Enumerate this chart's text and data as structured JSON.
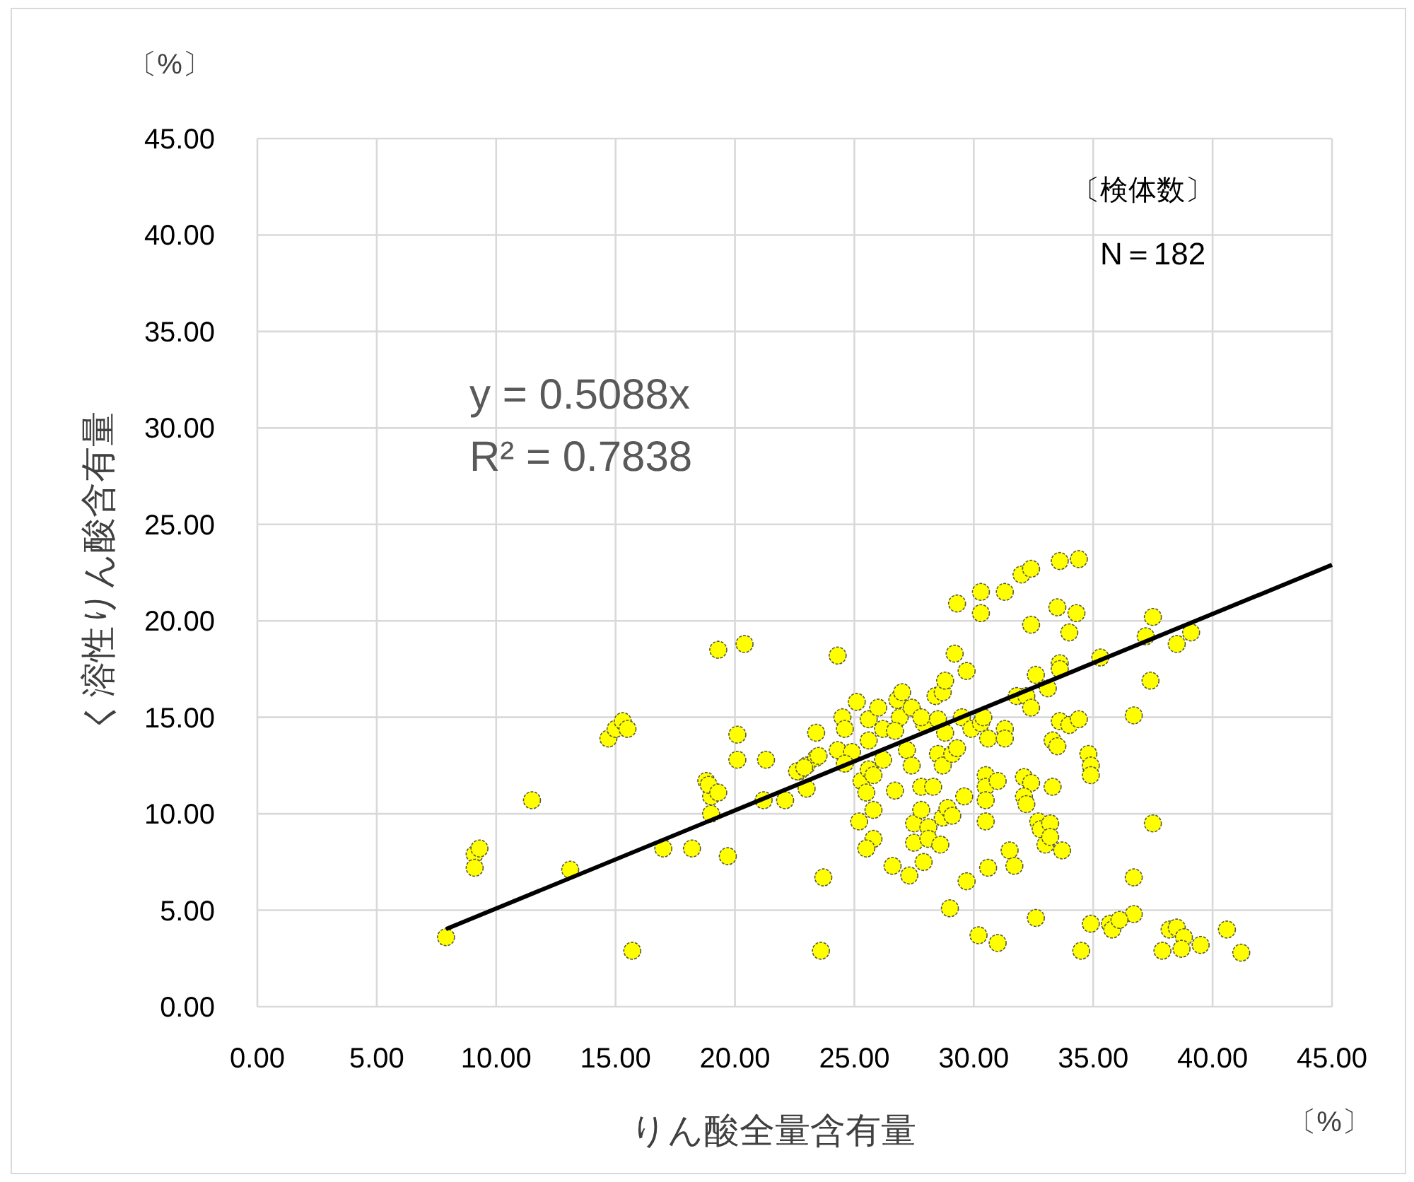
{
  "chart_data": {
    "type": "scatter",
    "xlabel": "りん酸全量含有量",
    "ylabel": "く溶性りん酸含有量",
    "annotations": [
      "〔%〕",
      "〔%〕",
      "y = 0.5088x",
      "R² = 0.7838",
      "〔検体数〕",
      "N＝182"
    ],
    "xlim": [
      0,
      45
    ],
    "ylim": [
      0,
      45
    ],
    "xticks": [
      {
        "value": 0,
        "label": "0.00"
      },
      {
        "value": 5,
        "label": "5.00"
      },
      {
        "value": 10,
        "label": "10.00"
      },
      {
        "value": 15,
        "label": "15.00"
      },
      {
        "value": 20,
        "label": "20.00"
      },
      {
        "value": 25,
        "label": "25.00"
      },
      {
        "value": 30,
        "label": "30.00"
      },
      {
        "value": 35,
        "label": "35.00"
      },
      {
        "value": 40,
        "label": "40.00"
      },
      {
        "value": 45,
        "label": "45.00"
      }
    ],
    "yticks": [
      {
        "value": 0,
        "label": "0.00"
      },
      {
        "value": 5,
        "label": "5.00"
      },
      {
        "value": 10,
        "label": "10.00"
      },
      {
        "value": 15,
        "label": "15.00"
      },
      {
        "value": 20,
        "label": "20.00"
      },
      {
        "value": 25,
        "label": "25.00"
      },
      {
        "value": 30,
        "label": "30.00"
      },
      {
        "value": 35,
        "label": "35.00"
      },
      {
        "value": 40,
        "label": "40.00"
      },
      {
        "value": 45,
        "label": "45.00"
      }
    ],
    "grid": true,
    "marker": "circle",
    "series": [
      {
        "color": "#ffff00",
        "x": [
          7.9,
          9.1,
          9.3,
          9.1,
          11.5,
          13.1,
          14.7,
          15.0,
          15.3,
          15.5,
          15.7,
          17.0,
          18.2,
          18.8,
          19.0,
          19.3,
          19.7,
          20.4,
          20.1,
          20.1,
          21.2,
          21.3,
          22.1,
          22.7,
          23.0,
          23.4,
          23.4,
          23.7,
          23.6,
          22.6,
          22.9,
          23.0,
          18.9,
          19.3,
          19.0,
          24.3,
          23.5,
          24.5,
          24.6,
          24.3,
          24.9,
          24.6,
          25.1,
          25.3,
          25.5,
          25.6,
          25.8,
          25.2,
          25.8,
          25.8,
          25.5,
          25.6,
          25.6,
          26.0,
          26.2,
          26.2,
          26.7,
          26.6,
          26.8,
          27.0,
          26.9,
          26.7,
          27.2,
          27.4,
          27.4,
          27.3,
          27.5,
          27.5,
          27.8,
          27.8,
          27.9,
          27.8,
          27.9,
          28.1,
          28.1,
          28.3,
          28.4,
          28.7,
          28.8,
          28.5,
          28.5,
          28.7,
          28.6,
          28.7,
          28.9,
          29.1,
          28.8,
          29.1,
          29.3,
          29.2,
          29.3,
          29.0,
          29.6,
          29.7,
          29.5,
          29.9,
          29.7,
          30.2,
          30.3,
          30.3,
          30.3,
          30.4,
          30.5,
          30.5,
          30.5,
          30.5,
          30.6,
          30.6,
          31.0,
          31.0,
          31.3,
          31.3,
          31.3,
          31.5,
          31.7,
          31.8,
          32.0,
          32.4,
          32.1,
          32.4,
          32.1,
          32.2,
          32.2,
          32.4,
          32.6,
          32.4,
          32.6,
          32.7,
          32.8,
          33.0,
          33.2,
          33.2,
          33.7,
          33.3,
          33.3,
          33.5,
          33.5,
          33.6,
          33.6,
          33.1,
          33.6,
          33.6,
          34.0,
          34.0,
          34.3,
          34.4,
          34.4,
          34.5,
          35.3,
          37.5,
          37.2,
          38.5,
          39.1,
          37.4,
          36.7,
          34.8,
          34.9,
          34.9,
          37.5,
          36.7,
          36.7,
          34.9,
          35.7,
          35.8,
          36.1,
          38.2,
          38.5,
          38.8,
          37.9,
          38.7,
          39.5,
          40.6,
          41.2
        ],
        "values": [
          3.6,
          7.9,
          8.2,
          7.2,
          10.7,
          7.1,
          13.9,
          14.4,
          14.8,
          14.4,
          2.9,
          8.2,
          8.2,
          11.7,
          10.9,
          18.5,
          7.8,
          18.8,
          14.1,
          12.8,
          10.7,
          12.8,
          10.7,
          12.2,
          12.5,
          14.2,
          12.9,
          6.7,
          2.9,
          12.2,
          12.4,
          11.3,
          11.5,
          11.1,
          10.0,
          18.2,
          13.0,
          15.0,
          14.4,
          13.3,
          13.2,
          12.6,
          15.8,
          11.7,
          11.1,
          12.3,
          12.0,
          9.6,
          10.2,
          8.7,
          8.2,
          13.8,
          14.9,
          15.5,
          14.4,
          12.8,
          11.2,
          7.3,
          15.9,
          16.3,
          15.0,
          14.3,
          13.3,
          15.5,
          12.5,
          6.8,
          9.5,
          8.5,
          11.4,
          10.2,
          14.7,
          15.0,
          7.5,
          9.3,
          8.7,
          11.4,
          16.1,
          16.3,
          16.9,
          14.9,
          13.1,
          12.5,
          8.4,
          9.8,
          10.3,
          9.9,
          14.2,
          13.1,
          13.4,
          18.3,
          20.9,
          5.1,
          10.9,
          17.4,
          15.0,
          14.4,
          6.5,
          3.7,
          20.4,
          21.5,
          14.7,
          15.0,
          12.0,
          11.4,
          10.7,
          9.6,
          7.2,
          13.9,
          11.7,
          3.3,
          21.5,
          14.4,
          13.9,
          8.1,
          7.3,
          16.1,
          22.4,
          22.7,
          11.9,
          11.6,
          10.9,
          10.5,
          16.1,
          15.5,
          17.2,
          19.8,
          4.6,
          9.6,
          9.2,
          8.4,
          9.5,
          8.8,
          8.1,
          11.4,
          13.8,
          13.5,
          20.7,
          23.1,
          14.8,
          16.5,
          17.8,
          17.5,
          14.6,
          19.4,
          20.4,
          23.2,
          14.9,
          2.9,
          18.1,
          20.2,
          19.2,
          18.8,
          19.4,
          16.9,
          15.1,
          13.1,
          12.5,
          12.0,
          9.5,
          6.7,
          4.8,
          4.3,
          4.3,
          4.0,
          4.5,
          4.0,
          4.1,
          3.6,
          2.9,
          3.0,
          3.2,
          4.0,
          2.8
        ]
      },
      {
        "type": "line",
        "color": "#000000",
        "marker": "none",
        "x": [
          7.9,
          45
        ],
        "values": [
          4.02,
          22.9
        ]
      }
    ]
  }
}
